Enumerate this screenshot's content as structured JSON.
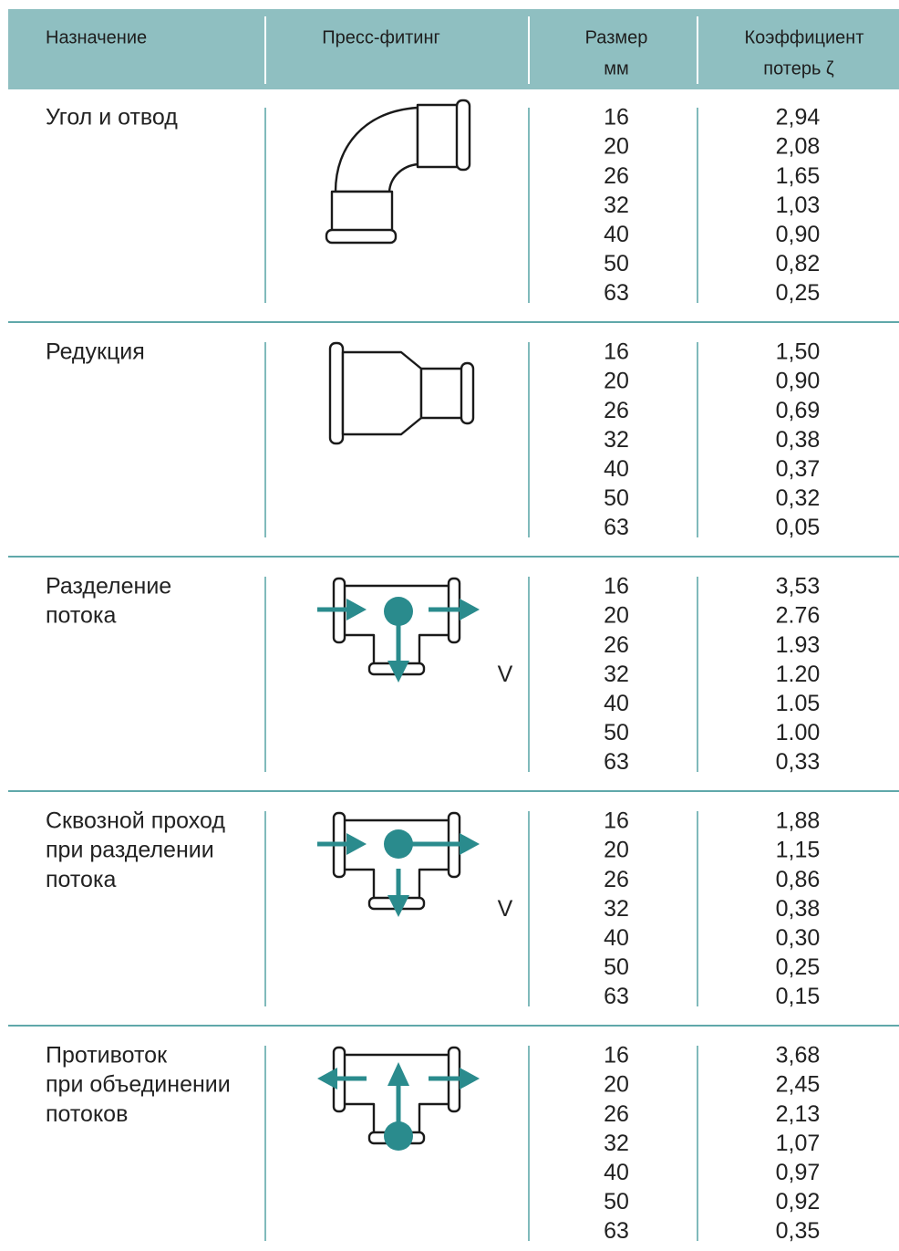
{
  "header": {
    "purpose": "Назначение",
    "fitting": "Пресс-фитинг",
    "size": [
      "Размер",
      "мм"
    ],
    "coefficient": [
      "Коэффициент",
      "потерь ζ"
    ]
  },
  "rows": [
    {
      "purpose": [
        "Угол и отвод"
      ],
      "sizes": [
        16,
        20,
        26,
        32,
        40,
        50,
        63
      ],
      "coefficients": [
        "2,94",
        "2,08",
        "1,65",
        "1,03",
        "0,90",
        "0,82",
        "0,25"
      ]
    },
    {
      "purpose": [
        "Редукция"
      ],
      "sizes": [
        16,
        20,
        26,
        32,
        40,
        50,
        63
      ],
      "coefficients": [
        "1,50",
        "0,90",
        "0,69",
        "0,38",
        "0,37",
        "0,32",
        "0,05"
      ]
    },
    {
      "purpose": [
        "Разделение",
        "потока"
      ],
      "flow_label": "V",
      "sizes": [
        16,
        20,
        26,
        32,
        40,
        50,
        63
      ],
      "coefficients": [
        "3,53",
        "2.76",
        "1.93",
        "1.20",
        "1.05",
        "1.00",
        "0,33"
      ]
    },
    {
      "purpose": [
        "Сквозной проход",
        "при разделении",
        "потока"
      ],
      "flow_label": "V",
      "sizes": [
        16,
        20,
        26,
        32,
        40,
        50,
        63
      ],
      "coefficients": [
        "1,88",
        "1,15",
        "0,86",
        "0,38",
        "0,30",
        "0,25",
        "0,15"
      ]
    },
    {
      "purpose": [
        "Противоток",
        "при объединении",
        "потоков"
      ],
      "sizes": [
        16,
        20,
        26,
        32,
        40,
        50,
        63
      ],
      "coefficients": [
        "3,68",
        "2,45",
        "2,13",
        "1,07",
        "0,97",
        "0,92",
        "0,35"
      ]
    }
  ]
}
